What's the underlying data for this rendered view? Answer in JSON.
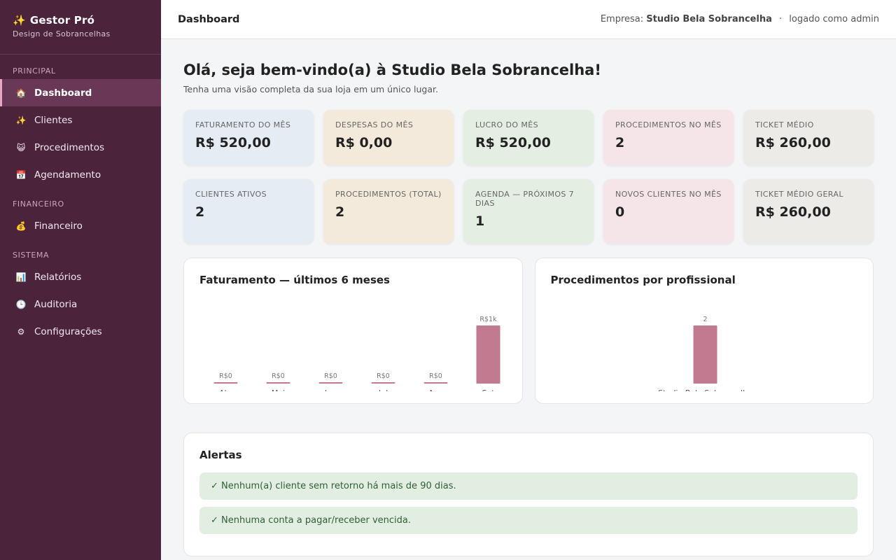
{
  "brand": {
    "title": "Gestor Pró",
    "subtitle": "Design de Sobrancelhas",
    "icon": "sparkles-icon"
  },
  "nav": {
    "sections": [
      "PRINCIPAL",
      "FINANCEIRO",
      "SISTEMA"
    ],
    "items": [
      {
        "label": "Dashboard",
        "icon": "house-icon",
        "glyph": "🏠",
        "active": true
      },
      {
        "label": "Clientes",
        "icon": "sparkles-icon",
        "glyph": "✨"
      },
      {
        "label": "Procedimentos",
        "icon": "face-icon",
        "glyph": "😺"
      },
      {
        "label": "Agendamento",
        "icon": "calendar-icon",
        "glyph": "📅"
      },
      {
        "label": "Financeiro",
        "icon": "money-bag-icon",
        "glyph": "💰"
      },
      {
        "label": "Relatórios",
        "icon": "bar-chart-icon",
        "glyph": "📊"
      },
      {
        "label": "Auditoria",
        "icon": "clock-icon",
        "glyph": "🕒"
      },
      {
        "label": "Configurações",
        "icon": "gear-icon",
        "glyph": "⚙"
      }
    ]
  },
  "topbar": {
    "title": "Dashboard",
    "company_prefix": "Empresa:",
    "company": "Studio Bela Sobrancelha",
    "separator": "·",
    "logged_as": "logado como admin"
  },
  "welcome": {
    "title": "Olá, seja bem-vindo(a) à Studio Bela Sobrancelha!",
    "subtitle": "Tenha uma visão completa da sua loja em um único lugar."
  },
  "stats_row1": [
    {
      "label": "Faturamento do mês",
      "value": "R$ 520,00"
    },
    {
      "label": "Despesas do mês",
      "value": "R$ 0,00"
    },
    {
      "label": "Lucro do mês",
      "value": "R$ 520,00"
    },
    {
      "label": "Procedimentos no mês",
      "value": "2"
    },
    {
      "label": "Ticket médio",
      "value": "R$ 260,00"
    }
  ],
  "stats_row2": [
    {
      "label": "Clientes ativos",
      "value": "2"
    },
    {
      "label": "Procedimentos (total)",
      "value": "2"
    },
    {
      "label": "Agenda — próximos 7 dias",
      "value": "1"
    },
    {
      "label": "Novos clientes no mês",
      "value": "0"
    },
    {
      "label": "Ticket médio geral",
      "value": "R$ 260,00"
    }
  ],
  "chart_data": [
    {
      "type": "bar",
      "title": "Faturamento — últimos 6 meses",
      "categories": [
        "Abr",
        "Mai",
        "Jun",
        "Jul",
        "Ago",
        "Set"
      ],
      "values": [
        0,
        0,
        0,
        0,
        0,
        520
      ],
      "value_labels": [
        "R$0",
        "R$0",
        "R$0",
        "R$0",
        "R$0",
        "R$1k"
      ],
      "bar_color": "#c27a90"
    },
    {
      "type": "bar",
      "title": "Procedimentos por profissional",
      "categories": [
        "Studio Bela Sobrancelha"
      ],
      "values": [
        2
      ],
      "value_labels": [
        "2"
      ],
      "bar_color": "#c27a90"
    }
  ],
  "alerts": {
    "title": "Alertas",
    "items": [
      "✓ Nenhum(a) cliente sem retorno há mais de 90 dias.",
      "✓ Nenhuma conta a pagar/receber vencida."
    ]
  }
}
